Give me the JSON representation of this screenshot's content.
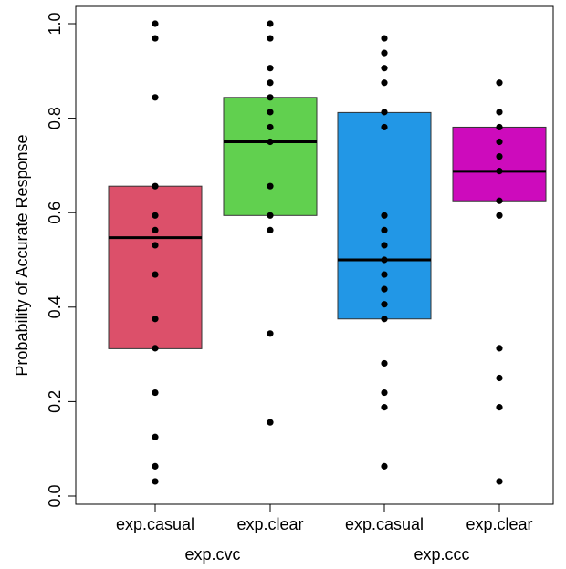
{
  "chart_data": {
    "type": "box",
    "title": "",
    "xlabel": "",
    "ylabel": "Probability of Accurate Response",
    "ylim": [
      0.0,
      1.0
    ],
    "yticks": [
      0.0,
      0.2,
      0.4,
      0.6,
      0.8,
      1.0
    ],
    "ytick_labels": [
      "0.0",
      "0.2",
      "0.4",
      "0.6",
      "0.8",
      "1.0"
    ],
    "groups": [
      {
        "label": "exp.cvc",
        "categories": [
          "exp.casual",
          "exp.clear"
        ]
      },
      {
        "label": "exp.ccc",
        "categories": [
          "exp.casual",
          "exp.clear"
        ]
      }
    ],
    "series": [
      {
        "category": "exp.casual",
        "group": "exp.cvc",
        "color": "#DC506A",
        "q1": 0.312,
        "median": 0.547,
        "q3": 0.656,
        "points": [
          1.0,
          0.969,
          0.844,
          0.656,
          0.594,
          0.563,
          0.531,
          0.469,
          0.375,
          0.313,
          0.219,
          0.125,
          0.063,
          0.031
        ]
      },
      {
        "category": "exp.clear",
        "group": "exp.cvc",
        "color": "#61D04F",
        "q1": 0.594,
        "median": 0.75,
        "q3": 0.844,
        "points": [
          1.0,
          0.969,
          0.906,
          0.875,
          0.844,
          0.813,
          0.781,
          0.75,
          0.656,
          0.594,
          0.563,
          0.344,
          0.156
        ]
      },
      {
        "category": "exp.casual",
        "group": "exp.ccc",
        "color": "#2297E6",
        "q1": 0.375,
        "median": 0.5,
        "q3": 0.812,
        "points": [
          0.969,
          0.938,
          0.906,
          0.875,
          0.813,
          0.781,
          0.594,
          0.563,
          0.531,
          0.5,
          0.469,
          0.438,
          0.406,
          0.375,
          0.281,
          0.219,
          0.188,
          0.063
        ]
      },
      {
        "category": "exp.clear",
        "group": "exp.ccc",
        "color": "#CD0BBC",
        "q1": 0.625,
        "median": 0.6875,
        "q3": 0.781,
        "points": [
          0.875,
          0.813,
          0.781,
          0.75,
          0.719,
          0.688,
          0.625,
          0.594,
          0.313,
          0.25,
          0.188,
          0.031
        ]
      }
    ]
  }
}
